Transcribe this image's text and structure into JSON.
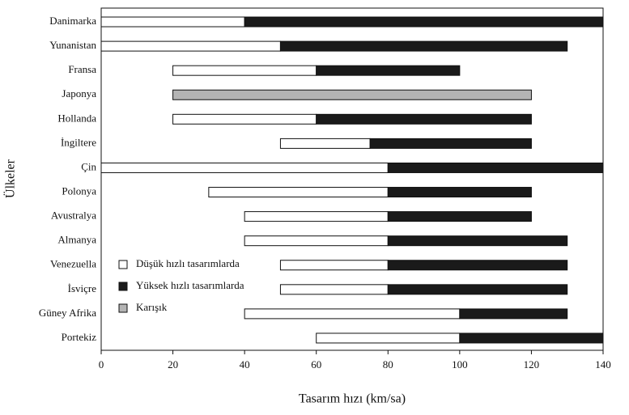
{
  "chart_data": {
    "type": "bar",
    "orientation": "horizontal",
    "x_label": "Tasarım hızı (km/sa)",
    "y_label": "Ülkeler",
    "categories": [
      "Danimarka",
      "Yunanistan",
      "Fransa",
      "Japonya",
      "Hollanda",
      "İngiltere",
      "Çin",
      "Polonya",
      "Avustralya",
      "Almanya",
      "Venezuella",
      "İsviçre",
      "Güney Afrika",
      "Portekiz"
    ],
    "series": [
      {
        "name": "Düşük hızlı tasarımlarda",
        "color": "#ffffff",
        "start": [
          0,
          0,
          20,
          null,
          20,
          50,
          0,
          30,
          40,
          40,
          50,
          50,
          40,
          60
        ],
        "end": [
          40,
          50,
          60,
          null,
          60,
          75,
          80,
          80,
          80,
          80,
          80,
          80,
          100,
          100
        ]
      },
      {
        "name": "Yüksek hızlı tasarımlarda",
        "color": "#1a1a1a",
        "start": [
          40,
          50,
          60,
          null,
          60,
          75,
          80,
          80,
          80,
          80,
          80,
          80,
          100,
          100
        ],
        "end": [
          140,
          130,
          100,
          null,
          120,
          120,
          140,
          120,
          120,
          130,
          130,
          130,
          130,
          140
        ]
      },
      {
        "name": "Karışık",
        "color": "#b4b4b4",
        "start": [
          null,
          null,
          null,
          20,
          null,
          null,
          null,
          null,
          null,
          null,
          null,
          null,
          null,
          null
        ],
        "end": [
          null,
          null,
          null,
          120,
          null,
          null,
          null,
          null,
          null,
          null,
          null,
          null,
          null,
          null
        ]
      }
    ],
    "xlim": [
      0,
      140
    ],
    "xticks": [
      0,
      20,
      40,
      60,
      80,
      100,
      120,
      140
    ]
  }
}
